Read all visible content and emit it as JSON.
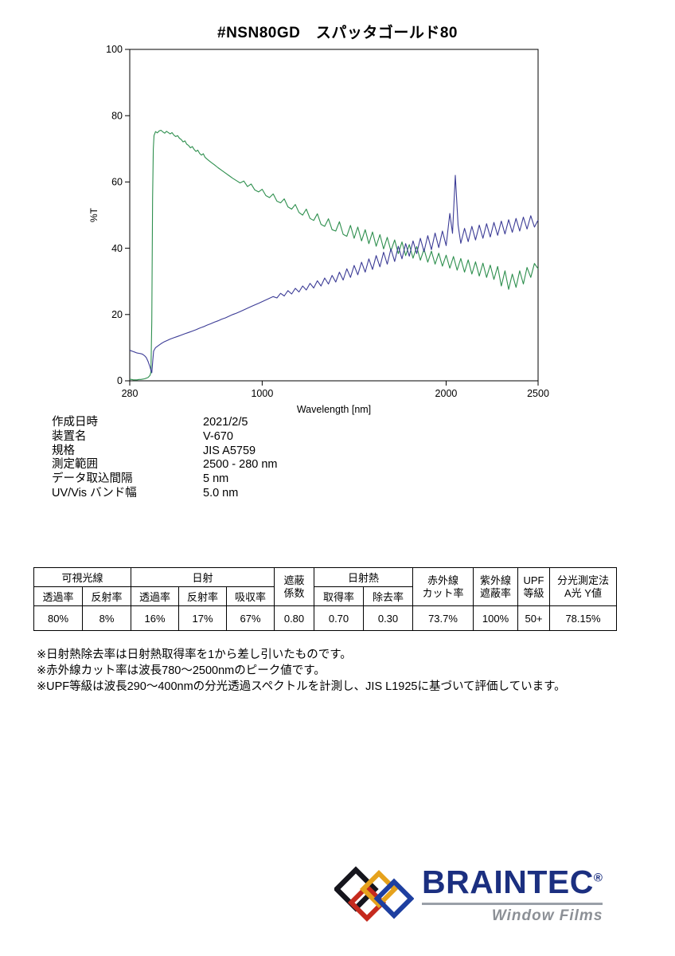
{
  "page": {
    "title": "#NSN80GD　スパッタゴールド80"
  },
  "chart_data": {
    "type": "line",
    "title": "",
    "xlabel": "Wavelength [nm]",
    "ylabel": "%T",
    "xlim": [
      280,
      2500
    ],
    "ylim": [
      0,
      100
    ],
    "x_ticks": [
      280,
      1000,
      2000,
      2500
    ],
    "y_ticks": [
      0,
      20,
      40,
      60,
      80,
      100
    ],
    "grid": false,
    "legend": "none",
    "series": [
      {
        "name": "transmittance-green",
        "color": "#2e8f4e",
        "points": [
          [
            280,
            0.5
          ],
          [
            290,
            0.4
          ],
          [
            300,
            0.3
          ],
          [
            310,
            0.3
          ],
          [
            320,
            0.3
          ],
          [
            330,
            0.4
          ],
          [
            340,
            0.4
          ],
          [
            350,
            0.5
          ],
          [
            360,
            0.6
          ],
          [
            370,
            0.8
          ],
          [
            380,
            1.0
          ],
          [
            390,
            1.6
          ],
          [
            395,
            2.6
          ],
          [
            400,
            18
          ],
          [
            404,
            55
          ],
          [
            408,
            70
          ],
          [
            412,
            74
          ],
          [
            420,
            75.2
          ],
          [
            430,
            74.8
          ],
          [
            440,
            75.4
          ],
          [
            450,
            75.6
          ],
          [
            460,
            75.1
          ],
          [
            470,
            74.7
          ],
          [
            480,
            75.3
          ],
          [
            490,
            74.9
          ],
          [
            500,
            74.5
          ],
          [
            510,
            74.9
          ],
          [
            520,
            74.1
          ],
          [
            530,
            73.7
          ],
          [
            540,
            74.0
          ],
          [
            550,
            73.2
          ],
          [
            560,
            72.8
          ],
          [
            570,
            72.1
          ],
          [
            580,
            72.4
          ],
          [
            590,
            71.4
          ],
          [
            600,
            71.0
          ],
          [
            610,
            70.3
          ],
          [
            620,
            70.7
          ],
          [
            630,
            69.8
          ],
          [
            640,
            69.2
          ],
          [
            650,
            69.6
          ],
          [
            660,
            68.6
          ],
          [
            670,
            68.1
          ],
          [
            680,
            68.5
          ],
          [
            690,
            67.4
          ],
          [
            700,
            66.9
          ],
          [
            720,
            66.0
          ],
          [
            740,
            65.2
          ],
          [
            760,
            64.3
          ],
          [
            780,
            63.5
          ],
          [
            800,
            62.7
          ],
          [
            820,
            61.9
          ],
          [
            840,
            61.1
          ],
          [
            860,
            60.4
          ],
          [
            880,
            59.7
          ],
          [
            900,
            60.3
          ],
          [
            920,
            58.6
          ],
          [
            940,
            59.4
          ],
          [
            960,
            57.6
          ],
          [
            980,
            57.0
          ],
          [
            1000,
            57.8
          ],
          [
            1020,
            55.9
          ],
          [
            1040,
            55.3
          ],
          [
            1060,
            56.4
          ],
          [
            1080,
            54.2
          ],
          [
            1100,
            53.7
          ],
          [
            1120,
            54.9
          ],
          [
            1140,
            52.5
          ],
          [
            1160,
            51.8
          ],
          [
            1180,
            53.2
          ],
          [
            1200,
            50.8
          ],
          [
            1220,
            50.0
          ],
          [
            1240,
            51.8
          ],
          [
            1260,
            49.0
          ],
          [
            1280,
            48.4
          ],
          [
            1300,
            50.4
          ],
          [
            1320,
            47.2
          ],
          [
            1340,
            46.6
          ],
          [
            1360,
            48.9
          ],
          [
            1380,
            45.6
          ],
          [
            1400,
            45.2
          ],
          [
            1420,
            48.0
          ],
          [
            1440,
            44.2
          ],
          [
            1460,
            43.6
          ],
          [
            1480,
            46.9
          ],
          [
            1500,
            43.0
          ],
          [
            1520,
            46.4
          ],
          [
            1540,
            42.2
          ],
          [
            1560,
            45.6
          ],
          [
            1580,
            41.4
          ],
          [
            1600,
            44.9
          ],
          [
            1620,
            40.6
          ],
          [
            1640,
            44.1
          ],
          [
            1660,
            39.8
          ],
          [
            1680,
            43.3
          ],
          [
            1700,
            39.2
          ],
          [
            1720,
            42.5
          ],
          [
            1740,
            38.4
          ],
          [
            1760,
            41.9
          ],
          [
            1780,
            37.8
          ],
          [
            1800,
            41.1
          ],
          [
            1820,
            37.0
          ],
          [
            1840,
            40.5
          ],
          [
            1860,
            36.4
          ],
          [
            1880,
            39.7
          ],
          [
            1900,
            35.8
          ],
          [
            1920,
            39.1
          ],
          [
            1940,
            35.2
          ],
          [
            1960,
            38.5
          ],
          [
            1980,
            34.6
          ],
          [
            2000,
            37.9
          ],
          [
            2020,
            34.0
          ],
          [
            2040,
            37.5
          ],
          [
            2060,
            33.4
          ],
          [
            2080,
            36.9
          ],
          [
            2100,
            32.8
          ],
          [
            2120,
            36.5
          ],
          [
            2140,
            32.2
          ],
          [
            2160,
            35.9
          ],
          [
            2180,
            31.6
          ],
          [
            2200,
            35.5
          ],
          [
            2220,
            31.2
          ],
          [
            2240,
            34.9
          ],
          [
            2260,
            30.6
          ],
          [
            2280,
            34.5
          ],
          [
            2300,
            28.6
          ],
          [
            2320,
            33.2
          ],
          [
            2340,
            27.6
          ],
          [
            2360,
            32.2
          ],
          [
            2380,
            28.2
          ],
          [
            2400,
            33.2
          ],
          [
            2420,
            29.2
          ],
          [
            2440,
            34.2
          ],
          [
            2460,
            31.2
          ],
          [
            2480,
            35.4
          ],
          [
            2500,
            33.8
          ]
        ]
      },
      {
        "name": "reflectance-blue",
        "color": "#3c3c96",
        "points": [
          [
            280,
            9.2
          ],
          [
            300,
            8.8
          ],
          [
            310,
            8.6
          ],
          [
            320,
            8.4
          ],
          [
            330,
            8.3
          ],
          [
            340,
            8.2
          ],
          [
            350,
            8.0
          ],
          [
            360,
            7.6
          ],
          [
            370,
            7.0
          ],
          [
            380,
            5.8
          ],
          [
            390,
            4.2
          ],
          [
            395,
            3.2
          ],
          [
            400,
            2.4
          ],
          [
            405,
            6.0
          ],
          [
            410,
            9.0
          ],
          [
            420,
            10.0
          ],
          [
            435,
            10.6
          ],
          [
            450,
            11.2
          ],
          [
            465,
            11.7
          ],
          [
            480,
            12.1
          ],
          [
            500,
            12.6
          ],
          [
            520,
            13.0
          ],
          [
            540,
            13.4
          ],
          [
            560,
            13.8
          ],
          [
            580,
            14.2
          ],
          [
            600,
            14.6
          ],
          [
            620,
            15.0
          ],
          [
            640,
            15.4
          ],
          [
            660,
            15.9
          ],
          [
            680,
            16.3
          ],
          [
            700,
            16.8
          ],
          [
            720,
            17.2
          ],
          [
            740,
            17.7
          ],
          [
            760,
            18.1
          ],
          [
            780,
            18.6
          ],
          [
            800,
            19.0
          ],
          [
            820,
            19.5
          ],
          [
            840,
            20.0
          ],
          [
            860,
            20.4
          ],
          [
            880,
            20.9
          ],
          [
            900,
            21.4
          ],
          [
            920,
            21.9
          ],
          [
            940,
            22.4
          ],
          [
            960,
            22.9
          ],
          [
            980,
            23.4
          ],
          [
            1000,
            23.9
          ],
          [
            1020,
            24.4
          ],
          [
            1040,
            24.9
          ],
          [
            1060,
            25.4
          ],
          [
            1080,
            25.0
          ],
          [
            1100,
            26.4
          ],
          [
            1120,
            25.6
          ],
          [
            1140,
            27.2
          ],
          [
            1160,
            26.2
          ],
          [
            1180,
            27.9
          ],
          [
            1200,
            26.8
          ],
          [
            1220,
            28.6
          ],
          [
            1240,
            27.4
          ],
          [
            1260,
            29.4
          ],
          [
            1280,
            28.0
          ],
          [
            1300,
            30.2
          ],
          [
            1320,
            28.6
          ],
          [
            1340,
            31.0
          ],
          [
            1360,
            29.2
          ],
          [
            1380,
            31.8
          ],
          [
            1400,
            29.8
          ],
          [
            1420,
            32.8
          ],
          [
            1440,
            30.4
          ],
          [
            1460,
            33.8
          ],
          [
            1480,
            31.2
          ],
          [
            1500,
            34.8
          ],
          [
            1520,
            32.0
          ],
          [
            1540,
            35.8
          ],
          [
            1560,
            32.8
          ],
          [
            1580,
            36.8
          ],
          [
            1600,
            33.6
          ],
          [
            1620,
            37.8
          ],
          [
            1640,
            34.4
          ],
          [
            1660,
            38.8
          ],
          [
            1680,
            35.2
          ],
          [
            1700,
            39.8
          ],
          [
            1720,
            36.0
          ],
          [
            1740,
            40.6
          ],
          [
            1760,
            36.8
          ],
          [
            1780,
            41.4
          ],
          [
            1800,
            37.6
          ],
          [
            1820,
            42.2
          ],
          [
            1840,
            38.4
          ],
          [
            1860,
            43.0
          ],
          [
            1880,
            39.0
          ],
          [
            1900,
            43.8
          ],
          [
            1920,
            39.6
          ],
          [
            1940,
            44.6
          ],
          [
            1960,
            40.2
          ],
          [
            1980,
            45.2
          ],
          [
            2000,
            40.8
          ],
          [
            2020,
            50.5
          ],
          [
            2035,
            44.5
          ],
          [
            2050,
            62.0
          ],
          [
            2065,
            47.0
          ],
          [
            2080,
            41.5
          ],
          [
            2100,
            46.0
          ],
          [
            2120,
            42.0
          ],
          [
            2140,
            46.6
          ],
          [
            2160,
            42.5
          ],
          [
            2180,
            47.0
          ],
          [
            2200,
            43.0
          ],
          [
            2220,
            47.4
          ],
          [
            2240,
            43.4
          ],
          [
            2260,
            47.8
          ],
          [
            2280,
            43.9
          ],
          [
            2300,
            48.2
          ],
          [
            2320,
            44.3
          ],
          [
            2340,
            48.6
          ],
          [
            2360,
            44.8
          ],
          [
            2380,
            49.0
          ],
          [
            2400,
            45.2
          ],
          [
            2420,
            49.4
          ],
          [
            2440,
            45.8
          ],
          [
            2460,
            49.8
          ],
          [
            2480,
            46.4
          ],
          [
            2500,
            48.5
          ]
        ]
      }
    ]
  },
  "metadata": {
    "rows": [
      {
        "label": "作成日時",
        "value": "2021/2/5"
      },
      {
        "label": "装置名",
        "value": "V-670"
      },
      {
        "label": "規格",
        "value": "JIS A5759"
      },
      {
        "label": "測定範囲",
        "value": "2500 - 280 nm"
      },
      {
        "label": "データ取込間隔",
        "value": "5 nm"
      },
      {
        "label": "UV/Vis バンド幅",
        "value": "5.0 nm"
      }
    ]
  },
  "results_table": {
    "group_headers": [
      "可視光線",
      "日射",
      "遮蔽\n係数",
      "日射熱",
      "赤外線\nカット率",
      "紫外線\n遮蔽率",
      "UPF\n等級",
      "分光測定法\nA光 Y値"
    ],
    "sub_headers": [
      "透過率",
      "反射率",
      "透過率",
      "反射率",
      "吸収率",
      "取得率",
      "除去率"
    ],
    "values": [
      "80%",
      "8%",
      "16%",
      "17%",
      "67%",
      "0.80",
      "0.70",
      "0.30",
      "73.7%",
      "100%",
      "50+",
      "78.15%"
    ]
  },
  "footnotes": [
    "※日射熱除去率は日射熱取得率を1から差し引いたものです。",
    "※赤外線カット率は波長780～2500nmのピーク値です。",
    "※UPF等級は波長290～400nmの分光透過スペクトルを計測し、JIS L1925に基づいて評価しています。"
  ],
  "logo": {
    "brand": "BRAINTEC",
    "registered": "®",
    "tagline": "Window Films",
    "diamond_colors": [
      "#15151d",
      "#c52a1e",
      "#e6a21c",
      "#1e3fa0"
    ]
  }
}
